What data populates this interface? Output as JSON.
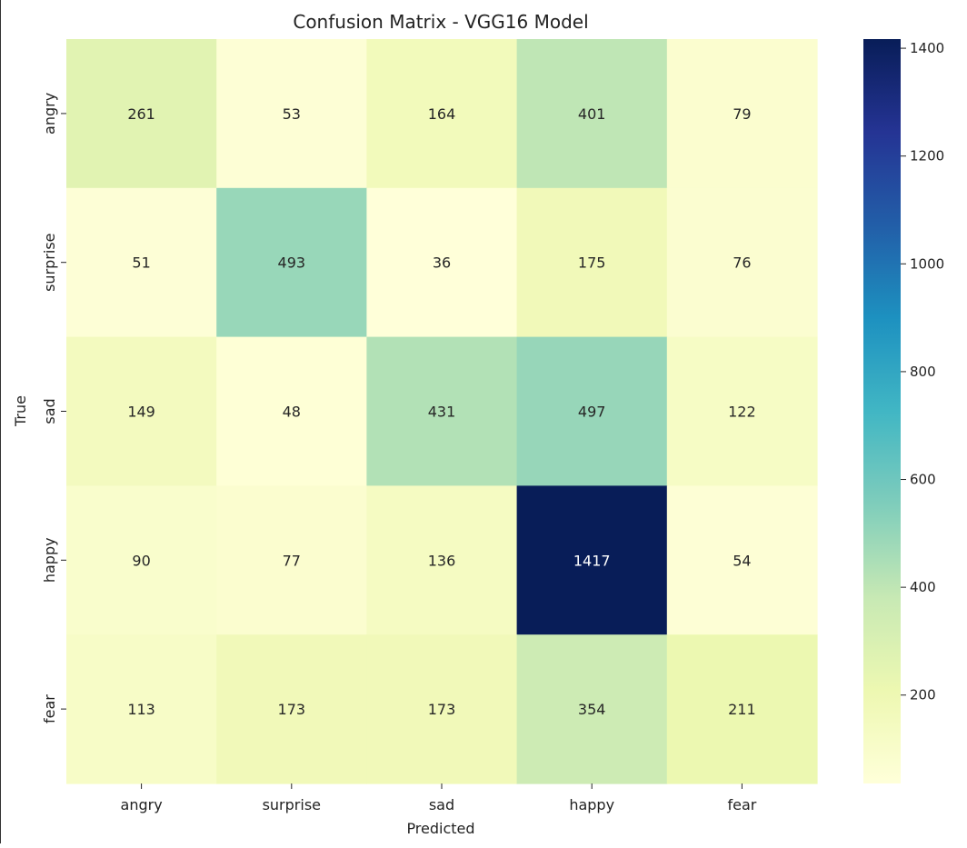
{
  "chart_data": {
    "type": "heatmap",
    "title": "Confusion Matrix - VGG16 Model",
    "xlabel": "Predicted",
    "ylabel": "True",
    "x_categories": [
      "angry",
      "surprise",
      "sad",
      "happy",
      "fear"
    ],
    "y_categories": [
      "angry",
      "surprise",
      "sad",
      "happy",
      "fear"
    ],
    "values": [
      [
        261,
        53,
        164,
        401,
        79
      ],
      [
        51,
        493,
        36,
        175,
        76
      ],
      [
        149,
        48,
        431,
        497,
        122
      ],
      [
        90,
        77,
        136,
        1417,
        54
      ],
      [
        113,
        173,
        173,
        354,
        211
      ]
    ],
    "colormap": "YlGnBu",
    "colorbar": {
      "range": [
        36,
        1417
      ],
      "ticks": [
        200,
        400,
        600,
        800,
        1000,
        1200,
        1400
      ]
    }
  }
}
